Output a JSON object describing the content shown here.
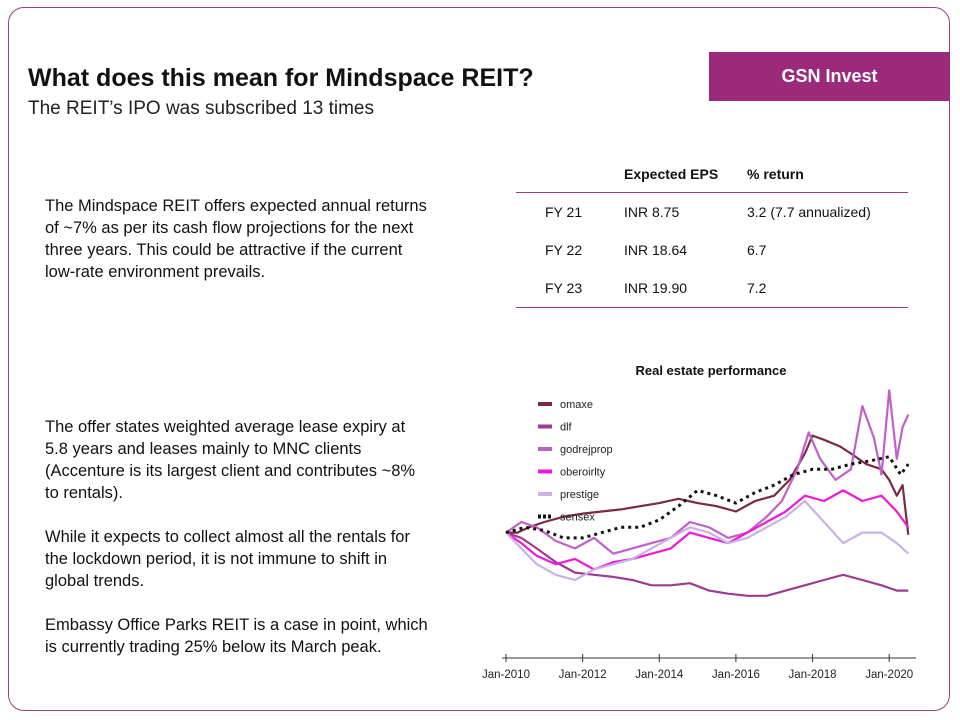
{
  "header": {
    "title": "What does this mean for Mindspace REIT?",
    "subtitle": "The REIT’s IPO was subscribed 13 times",
    "brand": "GSN Invest",
    "brand_color": "#9b2a7a"
  },
  "paragraphs": [
    "The Mindspace REIT offers expected annual returns of ~7% as per its cash flow projections for the next three years. This could be attractive if the current low-rate environment prevails.",
    "The offer states weighted average lease expiry at 5.8 years and leases mainly to MNC clients (Accenture is its largest client and contributes ~8% to rentals).",
    "While it expects to collect almost all the rentals for the lockdown period, it is not immune to shift in global trends.",
    "Embassy Office Parks REIT is a case in point, which is currently trading 25% below its March peak."
  ],
  "eps_table": {
    "headers": [
      "",
      "Expected EPS",
      "% return"
    ],
    "rows": [
      [
        "FY 21",
        "INR 8.75",
        "3.2 (7.7 annualized)"
      ],
      [
        "FY 22",
        "INR 18.64",
        "6.7"
      ],
      [
        "FY 23",
        "INR 19.90",
        "7.2"
      ]
    ]
  },
  "chart_data": {
    "type": "line",
    "title": "Real estate performance",
    "xlabel": "",
    "ylabel": "",
    "x_ticks": [
      "Jan-2010",
      "Jan-2012",
      "Jan-2014",
      "Jan-2016",
      "Jan-2018",
      "Jan-2020"
    ],
    "xlim": [
      2010.0,
      2020.7
    ],
    "ylim": [
      0,
      2.4
    ],
    "grid": false,
    "legend_position": "top-left",
    "series": [
      {
        "name": "omaxe",
        "color": "#7a2a45",
        "dash": false,
        "x": [
          2010.0,
          2010.3,
          2010.6,
          2011.0,
          2011.5,
          2012.0,
          2012.5,
          2013.0,
          2013.5,
          2014.0,
          2014.5,
          2015.0,
          2015.5,
          2016.0,
          2016.5,
          2017.0,
          2017.4,
          2017.8,
          2018.0,
          2018.3,
          2018.7,
          2019.0,
          2019.4,
          2019.8,
          2020.0,
          2020.2,
          2020.35,
          2020.5
        ],
        "y": [
          1.0,
          1.0,
          1.05,
          1.1,
          1.15,
          1.18,
          1.2,
          1.22,
          1.25,
          1.28,
          1.32,
          1.28,
          1.25,
          1.2,
          1.3,
          1.35,
          1.5,
          1.75,
          1.92,
          1.88,
          1.82,
          1.75,
          1.65,
          1.6,
          1.5,
          1.35,
          1.45,
          0.98
        ]
      },
      {
        "name": "dlf",
        "color": "#9c3b8f",
        "dash": false,
        "x": [
          2010.0,
          2010.4,
          2010.8,
          2011.3,
          2011.8,
          2012.3,
          2012.8,
          2013.3,
          2013.8,
          2014.3,
          2014.8,
          2015.3,
          2015.8,
          2016.3,
          2016.8,
          2017.3,
          2017.8,
          2018.3,
          2018.8,
          2019.3,
          2019.8,
          2020.2,
          2020.5
        ],
        "y": [
          1.0,
          0.95,
          0.85,
          0.72,
          0.62,
          0.6,
          0.58,
          0.55,
          0.5,
          0.5,
          0.52,
          0.45,
          0.42,
          0.4,
          0.4,
          0.45,
          0.5,
          0.55,
          0.6,
          0.55,
          0.5,
          0.45,
          0.45
        ]
      },
      {
        "name": "godrejprop",
        "color": "#c060c8",
        "dash": false,
        "x": [
          2010.0,
          2010.4,
          2010.8,
          2011.3,
          2011.8,
          2012.3,
          2012.8,
          2013.3,
          2013.8,
          2014.3,
          2014.8,
          2015.3,
          2015.8,
          2016.3,
          2016.8,
          2017.2,
          2017.6,
          2017.9,
          2018.2,
          2018.6,
          2019.0,
          2019.3,
          2019.6,
          2019.8,
          2020.0,
          2020.2,
          2020.35,
          2020.5
        ],
        "y": [
          1.0,
          1.1,
          1.05,
          0.92,
          0.85,
          0.95,
          0.8,
          0.85,
          0.9,
          0.95,
          1.1,
          1.05,
          0.95,
          1.0,
          1.15,
          1.3,
          1.6,
          1.95,
          1.7,
          1.5,
          1.6,
          2.2,
          1.9,
          1.55,
          2.35,
          1.7,
          2.0,
          2.12
        ]
      },
      {
        "name": "oberoirlty",
        "color": "#f018d8",
        "dash": false,
        "x": [
          2010.0,
          2010.4,
          2010.8,
          2011.3,
          2011.8,
          2012.3,
          2012.8,
          2013.3,
          2013.8,
          2014.3,
          2014.8,
          2015.3,
          2015.8,
          2016.3,
          2016.8,
          2017.3,
          2017.8,
          2018.3,
          2018.8,
          2019.3,
          2019.8,
          2020.2,
          2020.5
        ],
        "y": [
          1.0,
          0.9,
          0.78,
          0.7,
          0.75,
          0.65,
          0.72,
          0.75,
          0.8,
          0.85,
          1.0,
          0.95,
          0.9,
          1.0,
          1.1,
          1.2,
          1.35,
          1.3,
          1.4,
          1.3,
          1.35,
          1.2,
          1.05
        ]
      },
      {
        "name": "prestige",
        "color": "#c9b2e6",
        "dash": false,
        "x": [
          2010.0,
          2010.4,
          2010.8,
          2011.3,
          2011.8,
          2012.3,
          2012.8,
          2013.3,
          2013.8,
          2014.3,
          2014.8,
          2015.3,
          2015.8,
          2016.3,
          2016.8,
          2017.3,
          2017.8,
          2018.3,
          2018.8,
          2019.3,
          2019.8,
          2020.2,
          2020.5
        ],
        "y": [
          1.0,
          0.85,
          0.7,
          0.6,
          0.55,
          0.65,
          0.7,
          0.75,
          0.85,
          0.95,
          1.05,
          1.0,
          0.9,
          0.95,
          1.05,
          1.15,
          1.3,
          1.1,
          0.9,
          1.0,
          1.0,
          0.9,
          0.8
        ]
      },
      {
        "name": "sensex",
        "color": "#111111",
        "dash": true,
        "x": [
          2010.0,
          2010.5,
          2011.0,
          2011.5,
          2012.0,
          2012.5,
          2013.0,
          2013.5,
          2014.0,
          2014.5,
          2015.0,
          2015.5,
          2016.0,
          2016.5,
          2017.0,
          2017.5,
          2018.0,
          2018.5,
          2019.0,
          2019.5,
          2020.0,
          2020.3,
          2020.5
        ],
        "y": [
          1.0,
          1.05,
          1.02,
          0.95,
          0.95,
          1.0,
          1.05,
          1.05,
          1.12,
          1.25,
          1.4,
          1.35,
          1.28,
          1.38,
          1.45,
          1.55,
          1.6,
          1.6,
          1.65,
          1.68,
          1.72,
          1.55,
          1.65
        ]
      }
    ]
  }
}
